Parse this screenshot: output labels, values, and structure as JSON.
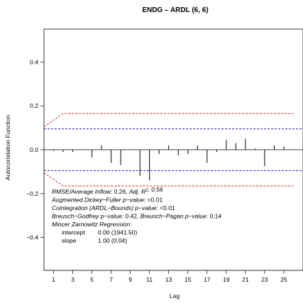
{
  "chart_data": {
    "type": "bar",
    "title": "ENDG – ARDL (6, 6)",
    "xlabel": "Lag",
    "ylabel": "Autocorrelation Function",
    "x_ticks": [
      "1",
      "3",
      "5",
      "7",
      "9",
      "11",
      "13",
      "15",
      "17",
      "19",
      "21",
      "23",
      "25"
    ],
    "y_ticks": [
      "−0.4",
      "−0.2",
      "0.0",
      "0.2",
      "0.4"
    ],
    "xlim": [
      0,
      27
    ],
    "ylim": [
      -0.55,
      0.55
    ],
    "grid": false,
    "legend": "none",
    "lags": [
      1,
      2,
      3,
      4,
      5,
      6,
      7,
      8,
      9,
      10,
      11,
      12,
      13,
      14,
      15,
      16,
      17,
      18,
      19,
      20,
      21,
      22,
      23,
      24,
      25,
      26
    ],
    "acf": [
      -0.005,
      -0.01,
      -0.01,
      0.0,
      -0.035,
      0.02,
      -0.06,
      -0.07,
      0.0,
      -0.12,
      -0.14,
      -0.02,
      0.02,
      -0.025,
      -0.02,
      0.02,
      -0.06,
      -0.01,
      0.045,
      0.03,
      0.05,
      0.005,
      -0.075,
      0.02,
      0.015,
      0.0
    ],
    "conf_band": {
      "color": "#2020c0",
      "style": "dashed",
      "upper": 0.095,
      "lower": -0.095
    },
    "bounds_band": {
      "color": "#d62020",
      "style": "dashed",
      "lags": [
        0,
        2,
        26
      ],
      "upper": [
        0.105,
        0.165,
        0.165
      ],
      "lower": [
        -0.105,
        -0.165,
        -0.165
      ]
    },
    "annotations": [
      [
        {
          "t": "RMSE/Average Inflow",
          "i": true
        },
        {
          "t": ":  0.26, "
        },
        {
          "t": "Adj. R",
          "i": true
        },
        {
          "t": "2",
          "sup": true
        },
        {
          "t": ":  0.56"
        }
      ],
      [
        {
          "t": "Augmented Dickey−Fuller p−value",
          "i": true
        },
        {
          "t": ":  <0.01"
        }
      ],
      [
        {
          "t": "Cointegration (ARDL−Bounds) p−value",
          "i": true
        },
        {
          "t": ":  <0.01"
        }
      ],
      [
        {
          "t": "Breusch−Godfrey p−value",
          "i": true
        },
        {
          "t": ":  0.42, "
        },
        {
          "t": "Breusch−Pagan p−value",
          "i": true
        },
        {
          "t": ":  0.14"
        }
      ],
      [
        {
          "t": "Mincer Zarnowitz Regression:",
          "i": true
        }
      ]
    ],
    "regression_table": [
      {
        "label": "intercept",
        "value": "0.00 (1941.50)"
      },
      {
        "label": "slope",
        "value": "1.00 (0.04)"
      }
    ]
  }
}
